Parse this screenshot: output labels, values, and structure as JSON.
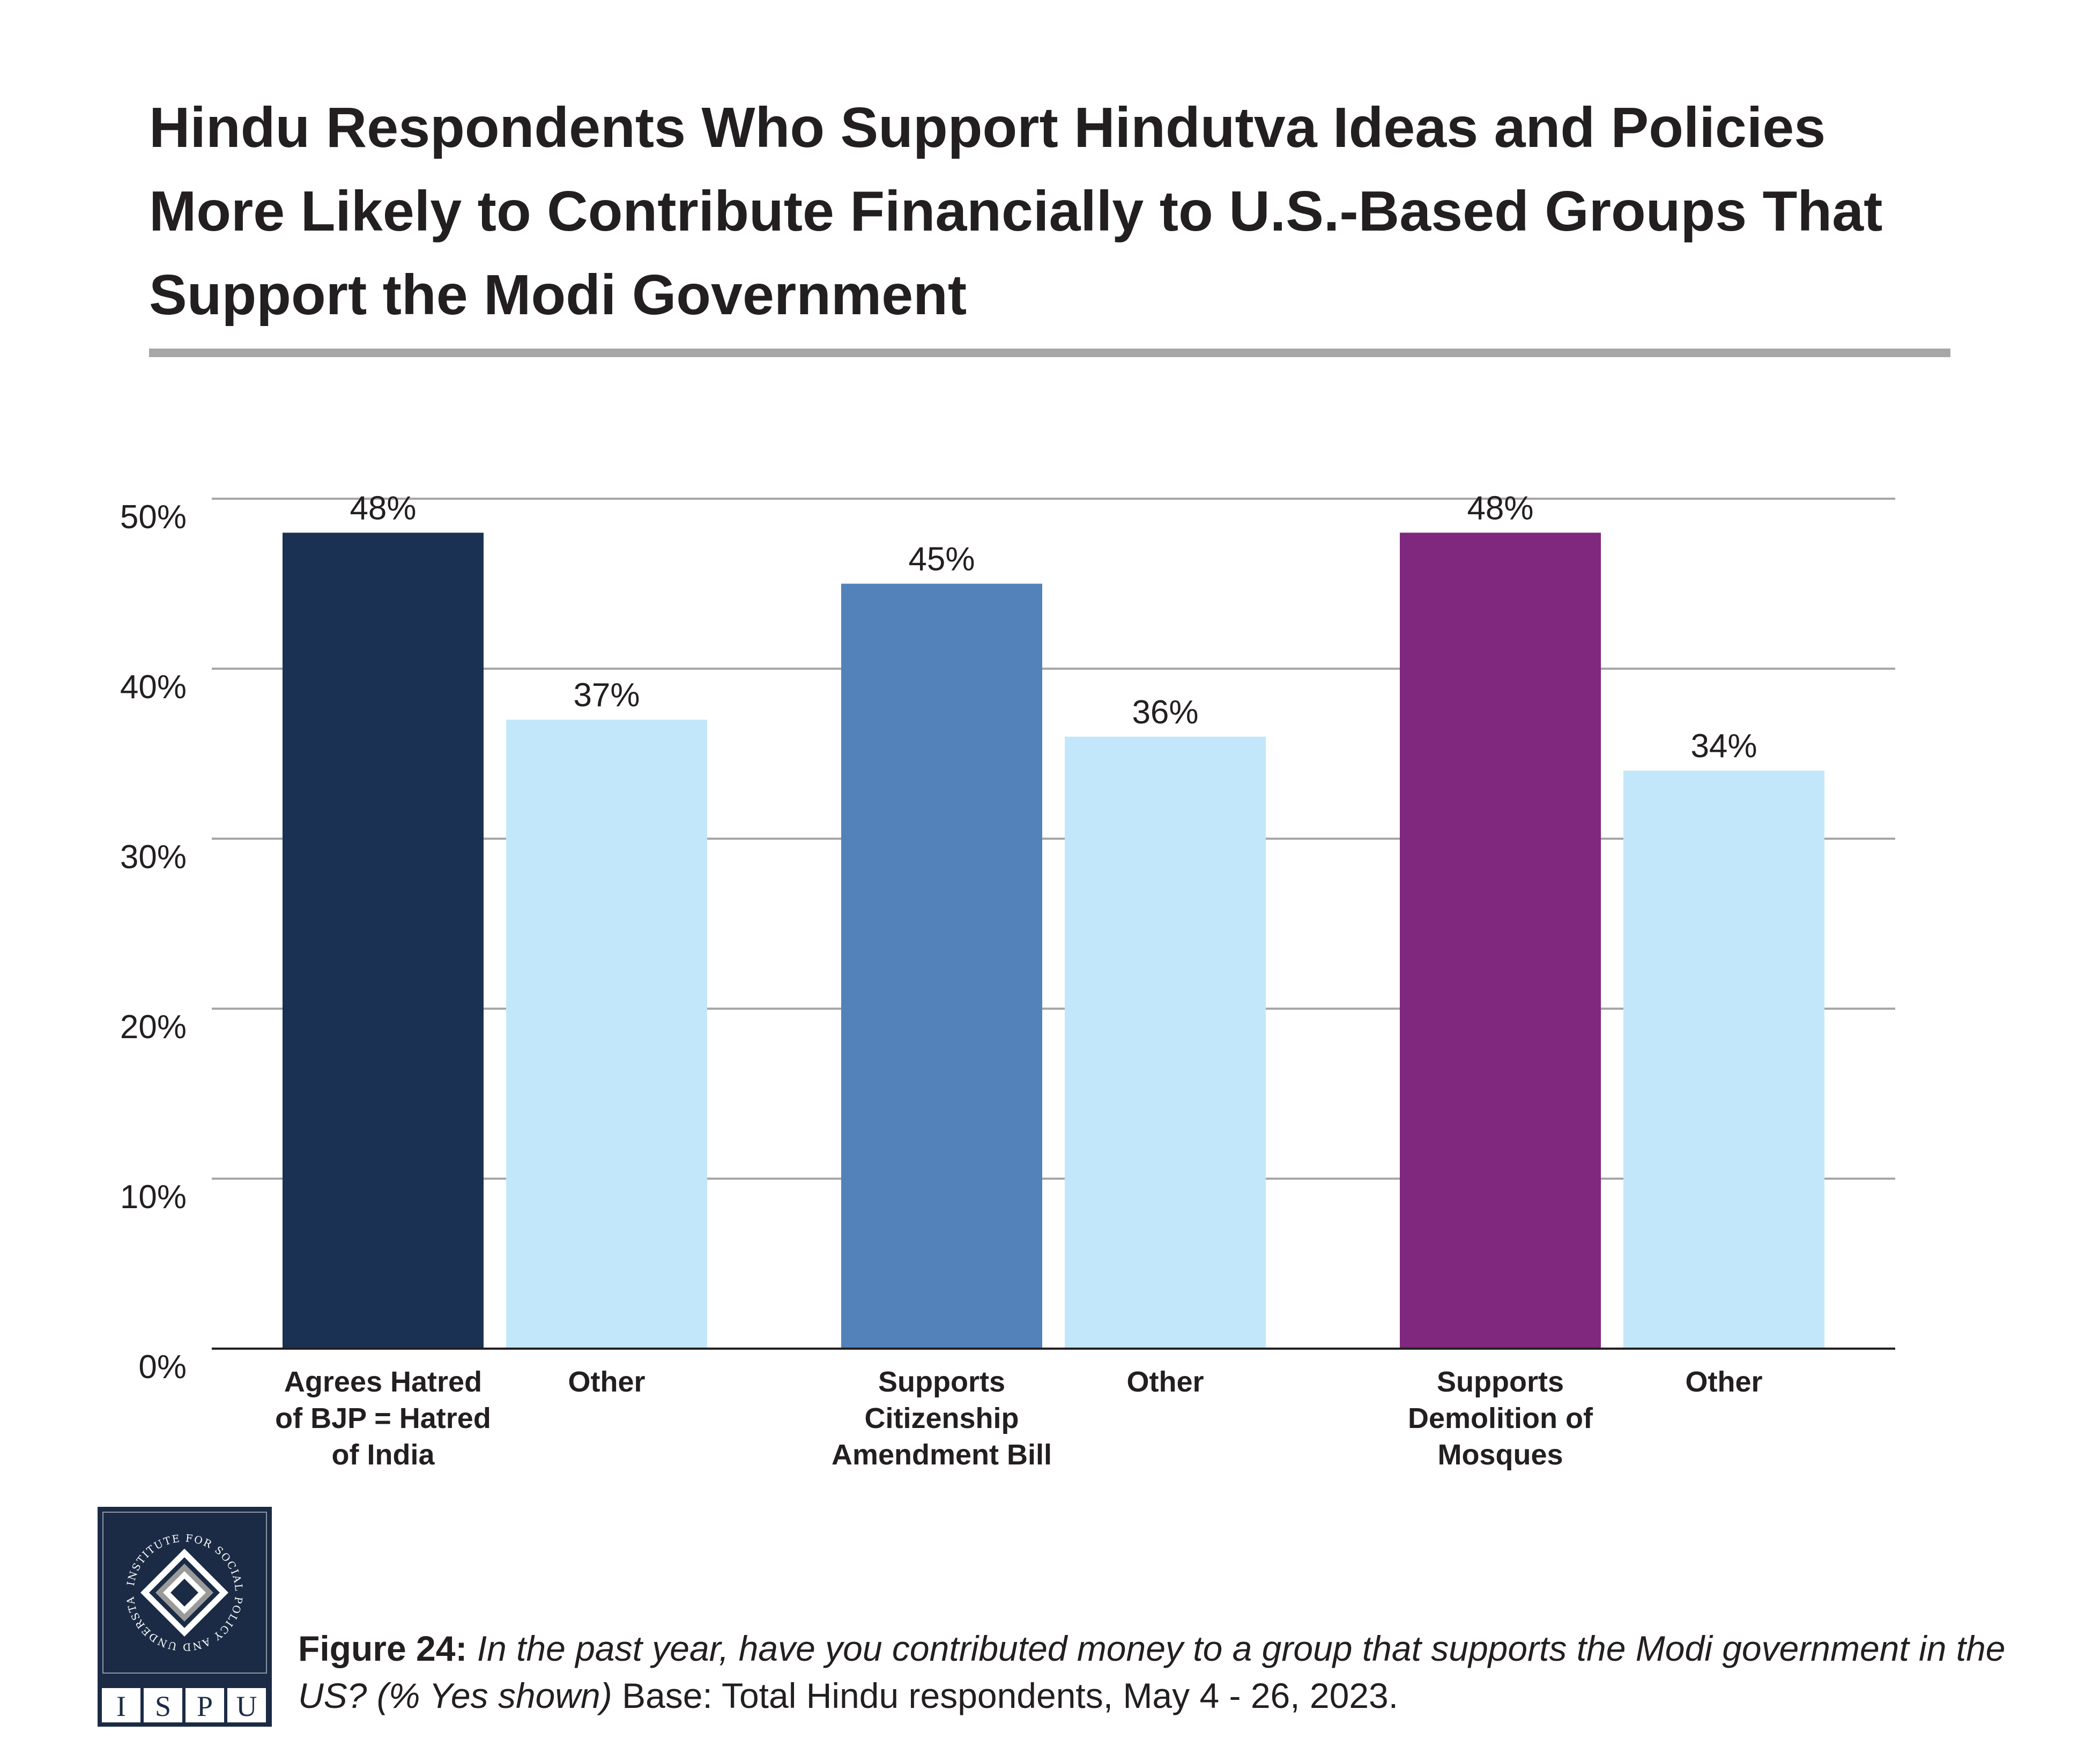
{
  "title_lines": [
    "Hindu Respondents Who Support Hindutva Ideas and Policies",
    "More Likely to Contribute Financially to U.S.-Based Groups That",
    "Support the Modi Government"
  ],
  "chart_data": {
    "type": "bar",
    "title": "Hindu Respondents Who Support Hindutva Ideas and Policies More Likely to Contribute Financially to U.S.-Based Groups That Support the Modi Government",
    "xlabel": "",
    "ylabel": "",
    "ylim": [
      0,
      50
    ],
    "y_ticks": [
      0,
      10,
      20,
      30,
      40,
      50
    ],
    "y_tick_labels": [
      "0%",
      "10%",
      "20%",
      "30%",
      "40%",
      "50%"
    ],
    "grid": true,
    "legend": "none",
    "groups": [
      {
        "bars": [
          {
            "label": [
              "Agrees Hatred",
              "of BJP = Hatred",
              "of India"
            ],
            "value": 48,
            "value_label": "48%",
            "color": "#1a3153"
          },
          {
            "label": [
              "Other"
            ],
            "value": 37,
            "value_label": "37%",
            "color": "#c3e7fa"
          }
        ]
      },
      {
        "bars": [
          {
            "label": [
              "Supports",
              "Citizenship",
              "Amendment Bill"
            ],
            "value": 45,
            "value_label": "45%",
            "color": "#5282b9"
          },
          {
            "label": [
              "Other"
            ],
            "value": 36,
            "value_label": "36%",
            "color": "#c3e7fa"
          }
        ]
      },
      {
        "bars": [
          {
            "label": [
              "Supports",
              "Demolition of",
              "Mosques"
            ],
            "value": 48,
            "value_label": "48%",
            "color": "#7f287d"
          },
          {
            "label": [
              "Other"
            ],
            "value": 34,
            "value_label": "34%",
            "color": "#c3e7fa"
          }
        ]
      }
    ]
  },
  "caption": {
    "figure_label": "Figure 24:",
    "question": "In the past year, have you contributed money to a group that supports the Modi government in the US? (% Yes shown)",
    "base": "Base: Total Hindu respondents, May 4 - 26, 2023."
  },
  "logo": {
    "ring_text": "INSTITUTE FOR SOCIAL POLICY AND UNDERSTANDING",
    "letters": [
      "I",
      "S",
      "P",
      "U"
    ]
  },
  "colors": {
    "title_rule": "#a7a7a7",
    "gridline": "#a7a7a7",
    "logo_bg": "#1b2b45"
  }
}
